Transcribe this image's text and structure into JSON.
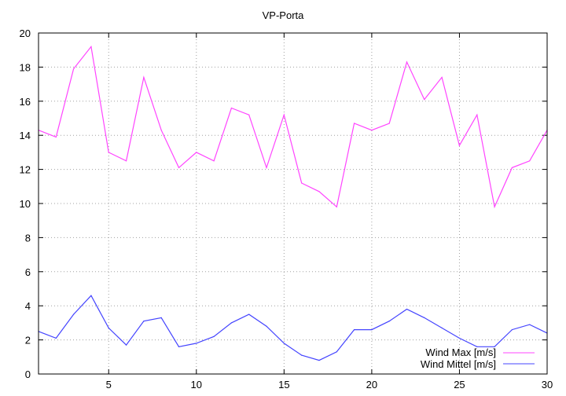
{
  "chart_data": {
    "type": "line",
    "title": "VP-Porta",
    "xlabel": "",
    "ylabel": "",
    "xlim": [
      1,
      30
    ],
    "ylim": [
      0,
      20
    ],
    "xticks": [
      5,
      10,
      15,
      20,
      25,
      30
    ],
    "yticks": [
      0,
      2,
      4,
      6,
      8,
      10,
      12,
      14,
      16,
      18,
      20
    ],
    "grid": true,
    "legend_position": "bottom-right",
    "x": [
      1,
      2,
      3,
      4,
      5,
      6,
      7,
      8,
      9,
      10,
      11,
      12,
      13,
      14,
      15,
      16,
      17,
      18,
      19,
      20,
      21,
      22,
      23,
      24,
      25,
      26,
      27,
      28,
      29,
      30
    ],
    "series": [
      {
        "name": "Wind Max [m/s]",
        "color": "#ff44ff",
        "values": [
          14.3,
          13.9,
          17.9,
          19.2,
          13.0,
          12.5,
          17.4,
          14.3,
          12.1,
          13.0,
          12.5,
          15.6,
          15.2,
          12.1,
          15.2,
          11.2,
          10.7,
          9.8,
          14.7,
          14.3,
          14.7,
          18.3,
          16.1,
          17.4,
          13.4,
          15.2,
          9.8,
          12.1,
          12.5,
          14.3
        ]
      },
      {
        "name": "Wind Mittel [m/s]",
        "color": "#4444ff",
        "values": [
          2.5,
          2.1,
          3.5,
          4.6,
          2.7,
          1.7,
          3.1,
          3.3,
          1.6,
          1.8,
          2.2,
          3.0,
          3.5,
          2.8,
          1.8,
          1.1,
          0.8,
          1.3,
          2.6,
          2.6,
          3.1,
          3.8,
          3.3,
          2.7,
          2.1,
          1.6,
          1.6,
          2.6,
          2.9,
          2.4
        ]
      }
    ]
  }
}
